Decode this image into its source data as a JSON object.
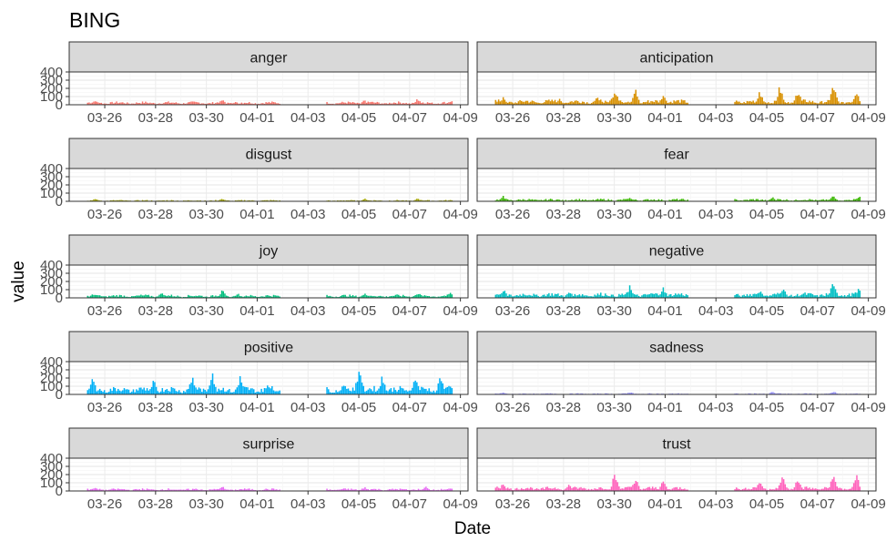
{
  "chart_data": {
    "type": "bar",
    "title": "BING",
    "xlabel": "Date",
    "ylabel": "value",
    "ylim": [
      0,
      400
    ],
    "y_ticks": [
      0,
      100,
      200,
      300,
      400
    ],
    "x_tick_labels": [
      "03-26",
      "03-28",
      "03-30",
      "04-01",
      "04-03",
      "04-05",
      "04-07",
      "04-09"
    ],
    "x_tick_days": [
      1,
      3,
      5,
      7,
      9,
      11,
      13,
      15
    ],
    "x_range_days": [
      -0.4,
      15.3
    ],
    "gap_days": [
      7.9,
      9.7
    ],
    "data_range_days": [
      0.3,
      14.7
    ],
    "series": [
      {
        "name": "anger",
        "color": "#F8766D",
        "base": 28,
        "peaks": [
          [
            0.6,
            55
          ],
          [
            5.6,
            70
          ],
          [
            6.1,
            45
          ],
          [
            11.2,
            60
          ],
          [
            13.3,
            85
          ],
          [
            14.6,
            55
          ]
        ]
      },
      {
        "name": "anticipation",
        "color": "#D89000",
        "base": 45,
        "peaks": [
          [
            0.6,
            110
          ],
          [
            2.8,
            80
          ],
          [
            4.3,
            100
          ],
          [
            5.0,
            230
          ],
          [
            5.8,
            210
          ],
          [
            6.9,
            150
          ],
          [
            10.7,
            170
          ],
          [
            11.5,
            260
          ],
          [
            12.2,
            200
          ],
          [
            13.6,
            270
          ],
          [
            14.5,
            190
          ]
        ]
      },
      {
        "name": "disgust",
        "color": "#A3A500",
        "base": 12,
        "peaks": [
          [
            0.6,
            35
          ],
          [
            5.6,
            40
          ],
          [
            11.2,
            40
          ],
          [
            13.3,
            40
          ]
        ]
      },
      {
        "name": "fear",
        "color": "#39B600",
        "base": 22,
        "peaks": [
          [
            0.6,
            70
          ],
          [
            5.6,
            50
          ],
          [
            11.2,
            55
          ],
          [
            13.6,
            80
          ],
          [
            14.6,
            70
          ]
        ]
      },
      {
        "name": "joy",
        "color": "#00BF7D",
        "base": 28,
        "peaks": [
          [
            0.6,
            55
          ],
          [
            3.2,
            70
          ],
          [
            5.6,
            100
          ],
          [
            6.2,
            65
          ],
          [
            11.2,
            70
          ],
          [
            13.3,
            75
          ],
          [
            14.6,
            80
          ]
        ]
      },
      {
        "name": "negative",
        "color": "#00BFC4",
        "base": 45,
        "peaks": [
          [
            0.6,
            120
          ],
          [
            3.2,
            90
          ],
          [
            5.6,
            170
          ],
          [
            6.9,
            140
          ],
          [
            10.7,
            110
          ],
          [
            11.6,
            150
          ],
          [
            13.6,
            220
          ],
          [
            14.6,
            150
          ]
        ]
      },
      {
        "name": "positive",
        "color": "#00B0F6",
        "base": 70,
        "peaks": [
          [
            0.5,
            220
          ],
          [
            2.9,
            190
          ],
          [
            4.4,
            250
          ],
          [
            5.2,
            320
          ],
          [
            6.3,
            240
          ],
          [
            7.4,
            150
          ],
          [
            10.4,
            160
          ],
          [
            11.0,
            400
          ],
          [
            11.9,
            260
          ],
          [
            13.2,
            250
          ],
          [
            14.2,
            260
          ]
        ]
      },
      {
        "name": "sadness",
        "color": "#9590FF",
        "base": 10,
        "peaks": [
          [
            0.6,
            28
          ],
          [
            5.6,
            35
          ],
          [
            11.2,
            35
          ],
          [
            13.6,
            45
          ]
        ]
      },
      {
        "name": "surprise",
        "color": "#E76BF3",
        "base": 22,
        "peaks": [
          [
            0.6,
            45
          ],
          [
            5.6,
            65
          ],
          [
            11.2,
            55
          ],
          [
            13.6,
            60
          ]
        ]
      },
      {
        "name": "trust",
        "color": "#FF62BC",
        "base": 38,
        "peaks": [
          [
            0.6,
            110
          ],
          [
            3.2,
            90
          ],
          [
            5.0,
            240
          ],
          [
            5.8,
            180
          ],
          [
            6.9,
            130
          ],
          [
            10.7,
            150
          ],
          [
            11.6,
            200
          ],
          [
            12.2,
            180
          ],
          [
            13.6,
            220
          ],
          [
            14.5,
            220
          ]
        ]
      }
    ]
  }
}
